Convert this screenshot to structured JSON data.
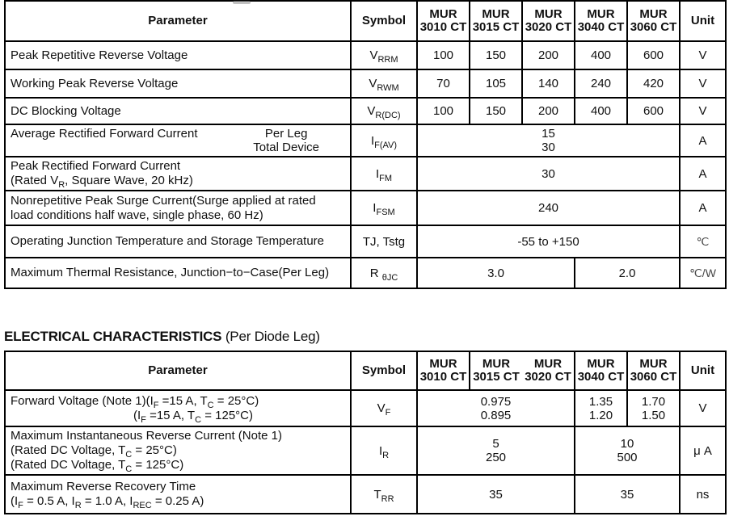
{
  "colors": {
    "border": "#000000",
    "text": "#101010",
    "unit_symbol_gray": "#454545",
    "background": "#ffffff"
  },
  "heading2": {
    "bold": "ELECTRICAL CHARACTERISTICS",
    "normal": " (Per Diode Leg)"
  },
  "t1": {
    "header": {
      "parameter": "Parameter",
      "symbol": "Symbol",
      "models": [
        "MUR 3010 CT",
        "MUR 3015 CT",
        "MUR 3020 CT",
        "MUR 3040 CT",
        "MUR 3060 CT"
      ],
      "unit": "Unit"
    },
    "rows": [
      {
        "param_lines": [
          [
            {
              "t": "Peak Repetitive Reverse Voltage"
            }
          ]
        ],
        "symbol": [
          {
            "t": "V"
          },
          {
            "t": "RRM",
            "sub": true
          }
        ],
        "values": [
          "100",
          "150",
          "200",
          "400",
          "600"
        ],
        "unit": "V"
      },
      {
        "param_lines": [
          [
            {
              "t": "Working Peak Reverse Voltage"
            }
          ]
        ],
        "symbol": [
          {
            "t": "V"
          },
          {
            "t": "RWM",
            "sub": true
          }
        ],
        "values": [
          "70",
          "105",
          "140",
          "240",
          "420"
        ],
        "unit": "V"
      },
      {
        "param_lines": [
          [
            {
              "t": "DC Blocking Voltage"
            }
          ]
        ],
        "symbol": [
          {
            "t": "V"
          },
          {
            "t": "R(DC)",
            "sub": true
          }
        ],
        "values": [
          "100",
          "150",
          "200",
          "400",
          "600"
        ],
        "unit": "V"
      },
      {
        "param_left": "Average Rectified Forward Current",
        "param_right": [
          "Per Leg",
          "Total Device"
        ],
        "symbol": [
          {
            "t": "I"
          },
          {
            "t": "F(AV)",
            "sub": true
          }
        ],
        "value_lines": [
          "15",
          "30"
        ],
        "unit": "A"
      },
      {
        "param_lines": [
          [
            {
              "t": "Peak Rectified Forward Current"
            }
          ],
          [
            {
              "t": "(Rated V"
            },
            {
              "t": "R",
              "sub": true
            },
            {
              "t": ", Square Wave, 20 kHz)"
            }
          ]
        ],
        "symbol": [
          {
            "t": "I"
          },
          {
            "t": "FM",
            "sub": true
          }
        ],
        "value": "30",
        "unit": "A"
      },
      {
        "param_lines": [
          [
            {
              "t": "Nonrepetitive Peak Surge Current(Surge applied at rated"
            }
          ],
          [
            {
              "t": "load conditions half wave, single phase, 60 Hz)"
            }
          ]
        ],
        "symbol": [
          {
            "t": "I"
          },
          {
            "t": "FSM",
            "sub": true
          }
        ],
        "value": "240",
        "unit": "A"
      },
      {
        "param_lines": [
          [
            {
              "t": "Operating Junction Temperature and Storage Temperature"
            }
          ]
        ],
        "symbol": [
          {
            "t": "TJ, Tstg"
          }
        ],
        "value": "-55 to +150",
        "unit": "℃"
      },
      {
        "param_lines": [
          [
            {
              "t": "Maximum Thermal Resistance, Junction−to−Case(Per Leg)"
            }
          ]
        ],
        "symbol": [
          {
            "t": "R "
          },
          {
            "t": "θJC",
            "sub": true
          }
        ],
        "value_left": "3.0",
        "value_right": "2.0",
        "unit": "℃/W"
      }
    ]
  },
  "t2": {
    "header": {
      "parameter": "Parameter",
      "symbol": "Symbol",
      "models": [
        "MUR 3010 CT",
        "MUR 3015 CT",
        "MUR 3020 CT",
        "MUR 3040 CT",
        "MUR 3060 CT"
      ],
      "unit": "Unit"
    },
    "rows": [
      {
        "param_lines": [
          [
            {
              "t": "Forward Voltage (Note 1)(I"
            },
            {
              "t": "F",
              "sub": true
            },
            {
              "t": " =15 A, T"
            },
            {
              "t": "C",
              "sub": true
            },
            {
              "t": " = 25°C)"
            }
          ],
          [
            {
              "t": "(I"
            },
            {
              "t": "F",
              "sub": true
            },
            {
              "t": " =15 A, T"
            },
            {
              "t": "C",
              "sub": true
            },
            {
              "t": " = 125°C)"
            }
          ]
        ],
        "symbol": [
          {
            "t": "V"
          },
          {
            "t": "F",
            "sub": true
          }
        ],
        "span3_lines": [
          "0.975",
          "0.895"
        ],
        "c4_lines": [
          "1.35",
          "1.20"
        ],
        "c5_lines": [
          "1.70",
          "1.50"
        ],
        "unit": "V"
      },
      {
        "param_lines": [
          [
            {
              "t": "Maximum Instantaneous Reverse Current (Note 1)"
            }
          ],
          [
            {
              "t": "(Rated DC Voltage, T"
            },
            {
              "t": "C",
              "sub": true
            },
            {
              "t": " = 25°C)"
            }
          ],
          [
            {
              "t": "(Rated DC Voltage, T"
            },
            {
              "t": "C",
              "sub": true
            },
            {
              "t": " = 125°C)"
            }
          ]
        ],
        "symbol": [
          {
            "t": "I"
          },
          {
            "t": "R",
            "sub": true
          }
        ],
        "span3_lines": [
          "5",
          "250"
        ],
        "span2_lines": [
          "10",
          "500"
        ],
        "unit": "μ A"
      },
      {
        "param_lines": [
          [
            {
              "t": "Maximum Reverse Recovery Time"
            }
          ],
          [
            {
              "t": "(I"
            },
            {
              "t": "F",
              "sub": true
            },
            {
              "t": " = 0.5 A, I"
            },
            {
              "t": "R",
              "sub": true
            },
            {
              "t": " = 1.0 A, I"
            },
            {
              "t": "REC",
              "sub": true
            },
            {
              "t": " = 0.25 A)"
            }
          ]
        ],
        "symbol": [
          {
            "t": "T"
          },
          {
            "t": "RR",
            "sub": true
          }
        ],
        "span3": "35",
        "span2": "35",
        "unit": "ns"
      }
    ]
  }
}
